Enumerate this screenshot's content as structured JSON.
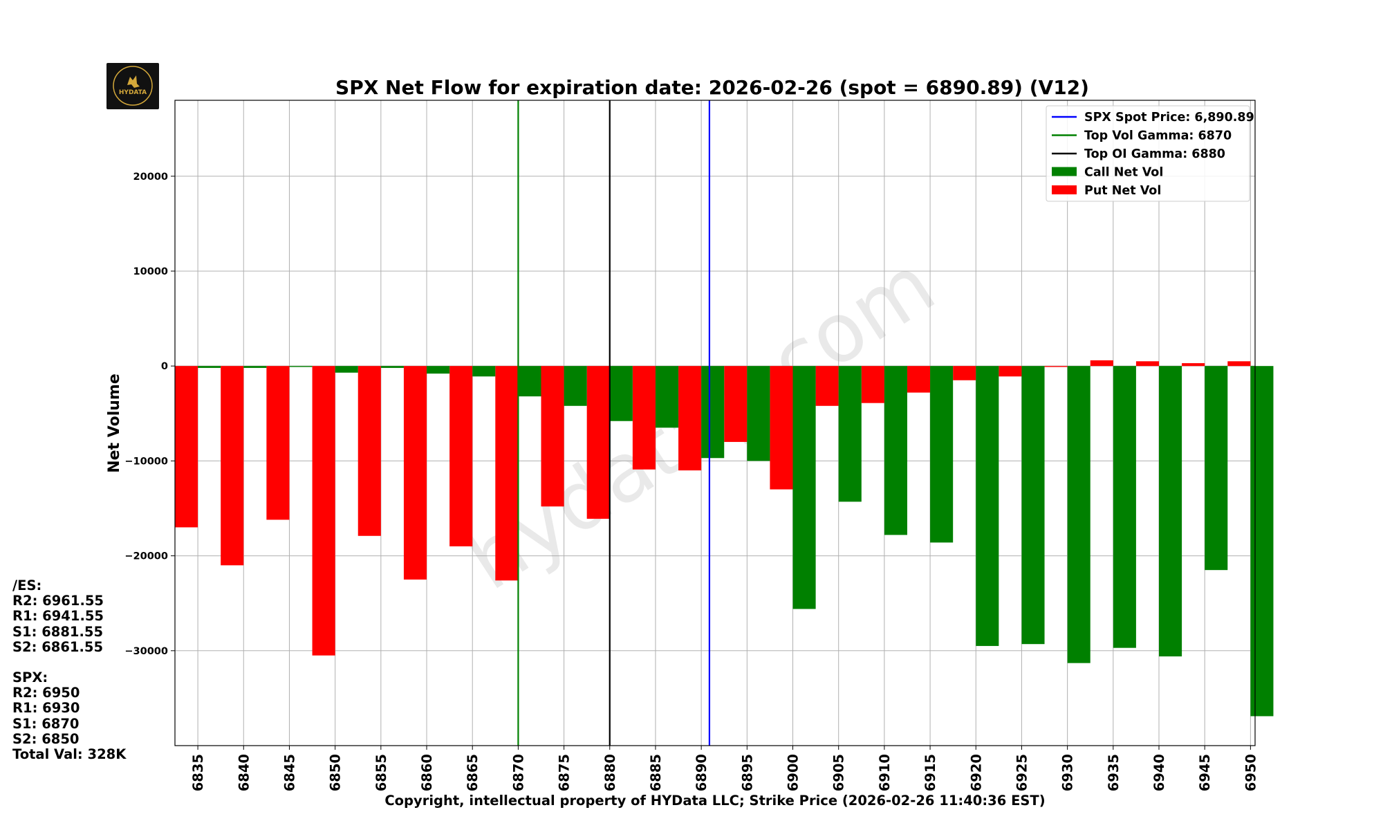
{
  "logo": {
    "label": "HYDATA"
  },
  "watermark": "hydatag.com",
  "levels": {
    "es_header": "/ES:",
    "es_lines": [
      "R2: 6961.55",
      "R1: 6941.55",
      "S1: 6881.55",
      "S2: 6861.55"
    ],
    "spx_header": "SPX:",
    "spx_lines": [
      "R2: 6950",
      "R1: 6930",
      "S1: 6870",
      "S2: 6850"
    ],
    "total": "Total Val: 328K"
  },
  "chart_data": {
    "type": "bar",
    "title": "SPX Net Flow for expiration date: 2026-02-26 (spot = 6890.89) (V12)",
    "xlabel": "Copyright, intellectual property of HYData LLC; Strike Price (2026-02-26 11:40:36 EST)",
    "ylabel": "Net Volume",
    "categories": [
      6835,
      6840,
      6845,
      6850,
      6855,
      6860,
      6865,
      6870,
      6875,
      6880,
      6885,
      6890,
      6895,
      6900,
      6905,
      6910,
      6915,
      6920,
      6925,
      6930,
      6935,
      6940,
      6945,
      6950
    ],
    "xlim": [
      6832.5,
      6950.5
    ],
    "ylim": [
      -40000,
      28000
    ],
    "yticks": [
      -30000,
      -20000,
      -10000,
      0,
      10000,
      20000
    ],
    "series": [
      {
        "name": "Put Net Vol",
        "color": "#ff0000",
        "offset": -1.25,
        "values": [
          -17000,
          -21000,
          -16200,
          -30500,
          -17900,
          -22500,
          -19000,
          -22600,
          -14800,
          -16100,
          -10900,
          -11000,
          -8000,
          -13000,
          -4200,
          -3900,
          -2800,
          -1500,
          -1100,
          -100,
          600,
          500,
          300,
          500
        ]
      },
      {
        "name": "Call Net Vol",
        "color": "#008000",
        "offset": 1.25,
        "values": [
          -200,
          -200,
          -100,
          -700,
          -200,
          -800,
          -1100,
          -3200,
          -4200,
          -5800,
          -6500,
          -9700,
          -10000,
          -25600,
          -14300,
          -17800,
          -18600,
          -29500,
          -29300,
          -31300,
          -29700,
          -30600,
          -21500,
          -36900
        ]
      }
    ],
    "ref_lines": [
      {
        "name": "SPX Spot Price: 6,890.89",
        "x": 6890.89,
        "color": "#0000ff"
      },
      {
        "name": "Top Vol Gamma: 6870",
        "x": 6870,
        "color": "#008000"
      },
      {
        "name": "Top OI Gamma: 6880",
        "x": 6880,
        "color": "#000000"
      }
    ],
    "legend": {
      "position": "top-right",
      "entries": [
        {
          "label": "SPX Spot Price: 6,890.89",
          "kind": "line",
          "color": "#0000ff"
        },
        {
          "label": "Top Vol Gamma: 6870",
          "kind": "line",
          "color": "#008000"
        },
        {
          "label": "Top OI Gamma: 6880",
          "kind": "line",
          "color": "#000000"
        },
        {
          "label": "Call Net Vol",
          "kind": "patch",
          "color": "#008000"
        },
        {
          "label": "Put Net Vol",
          "kind": "patch",
          "color": "#ff0000"
        }
      ]
    },
    "grid": true
  }
}
